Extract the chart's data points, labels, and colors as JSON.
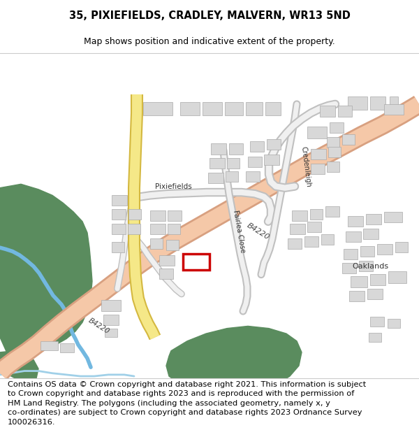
{
  "title": "35, PIXIEFIELDS, CRADLEY, MALVERN, WR13 5ND",
  "subtitle": "Map shows position and indicative extent of the property.",
  "footer_lines": [
    "Contains OS data © Crown copyright and database right 2021. This information is subject",
    "to Crown copyright and database rights 2023 and is reproduced with the permission of",
    "HM Land Registry. The polygons (including the associated geometry, namely x, y",
    "co-ordinates) are subject to Crown copyright and database rights 2023 Ordnance Survey",
    "100026316."
  ],
  "title_fontsize": 10.5,
  "subtitle_fontsize": 9,
  "footer_fontsize": 8.2,
  "bg_color": "#ffffff",
  "map_bg": "#f9f9f7",
  "road_b4220_fill": "#f5c8a8",
  "road_b4220_edge": "#d8a080",
  "road_yellow_fill": "#f5e888",
  "road_yellow_edge": "#d4b840",
  "building_fill": "#d8d8d8",
  "building_edge": "#aaaaaa",
  "green_fill": "#5a8c5e",
  "water_color": "#72b8e0",
  "plot_edge": "#cc0000",
  "road_white_fill": "#f0f0f0",
  "road_white_edge": "#c0c0c0"
}
